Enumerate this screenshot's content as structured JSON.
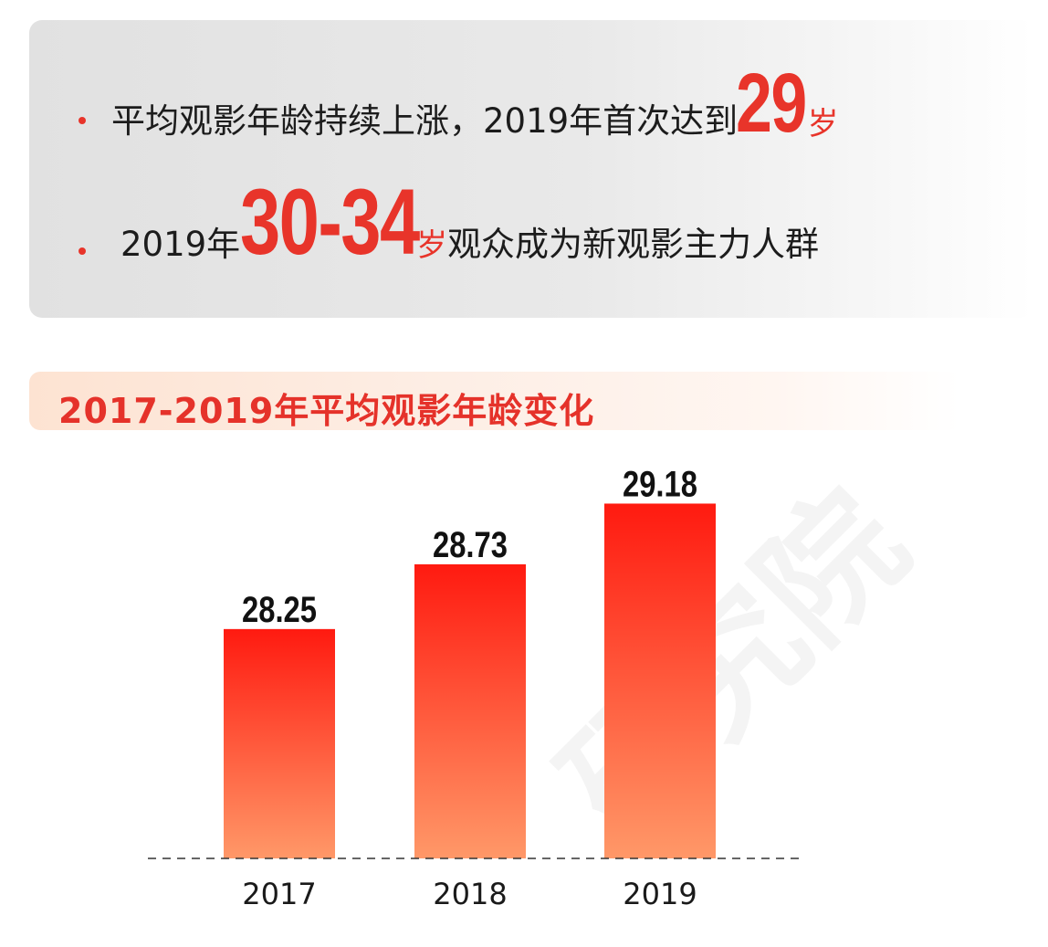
{
  "summary": {
    "line1": {
      "text": "平均观影年龄持续上涨，2019年首次达到",
      "number": "29",
      "unit": "岁"
    },
    "line2": {
      "prefix": "2019年",
      "number": "30-34",
      "unit": "岁",
      "suffix": "观众成为新观影主力人群"
    }
  },
  "section_heading": "2017-2019年平均观影年龄变化",
  "watermark": "研究院",
  "colors": {
    "accent": "#e8342a",
    "bar_top": "#ff1a10",
    "bar_bottom": "#ff9868"
  },
  "chart_data": {
    "type": "bar",
    "title": "2017-2019年平均观影年龄变化",
    "categories": [
      "2017",
      "2018",
      "2019"
    ],
    "values": [
      28.25,
      28.73,
      29.18
    ],
    "value_labels": [
      "28.25",
      "28.73",
      "29.18"
    ],
    "xlabel": "",
    "ylabel": "",
    "ylim": [
      26.55,
      29.42
    ],
    "grid": false,
    "legend": "none",
    "baseline": "dashed"
  }
}
